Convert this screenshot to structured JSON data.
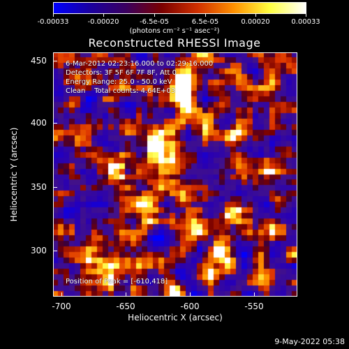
{
  "colorbar": {
    "labels": [
      "-0.00033",
      "-0.00020",
      "-6.5e-05",
      "6.5e-05",
      "0.00020",
      "0.00033"
    ],
    "unit": "(photons cm⁻² s⁻¹ asec⁻²)",
    "colors": [
      "#0000ff",
      "#1a00a0",
      "#3a0060",
      "#7a0000",
      "#d03000",
      "#ff9000",
      "#ffff40",
      "#ffffff"
    ]
  },
  "title": "Reconstructed RHESSI Image",
  "info": {
    "time": "6-Mar-2012 02:23:16.000 to 02:29:16.000",
    "detectors": "Detectors: 3F 5F 6F 7F 8F, Att 0",
    "energy": "Energy Range: 25.0 - 50.0 keV",
    "clean": "Clean    Total counts: 4.64E+03",
    "peak": "Position of Peak = [-610,418]"
  },
  "axes": {
    "xlabel": "Heliocentric X (arcsec)",
    "ylabel": "Heliocentric Y (arcsec)",
    "xticks": [
      "-700",
      "-650",
      "-600",
      "-550"
    ],
    "yticks": [
      "450",
      "400",
      "350",
      "300"
    ],
    "xrange": [
      -710,
      -520
    ],
    "yrange": [
      265,
      455
    ]
  },
  "footer": {
    "date": "9-May-2022 05:38"
  }
}
